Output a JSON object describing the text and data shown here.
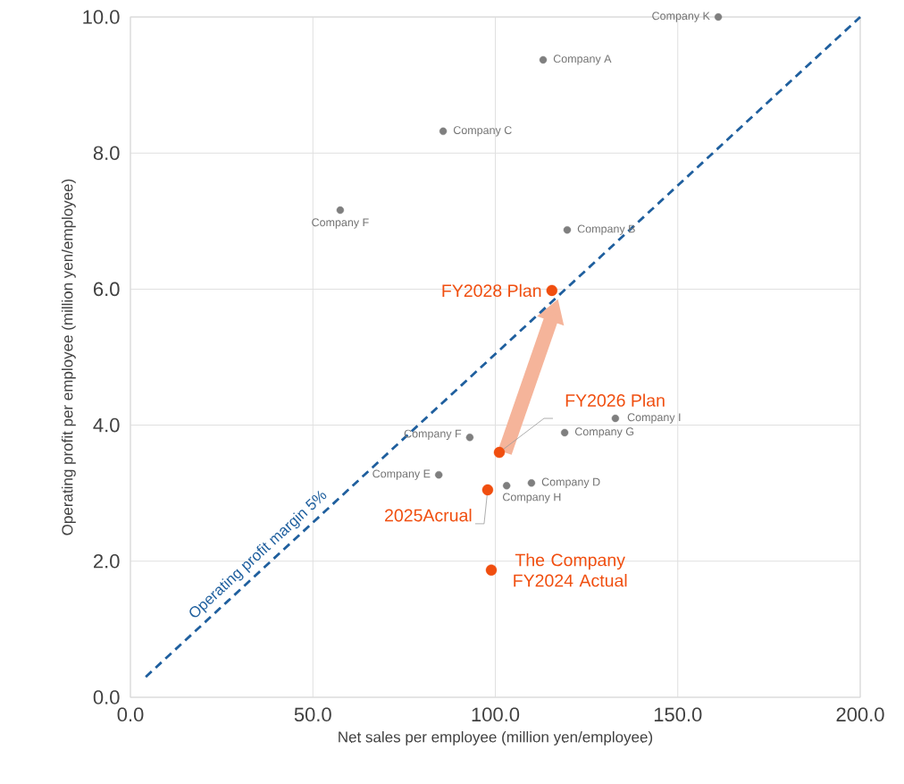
{
  "chart_data": {
    "type": "scatter",
    "xlabel": "Net sales per employee (million yen/employee)",
    "ylabel": "Operating profit per employee (million yen/employee)",
    "xlim": [
      0,
      200
    ],
    "ylim": [
      0,
      10
    ],
    "xticks": [
      {
        "value": 0,
        "label": "0.0"
      },
      {
        "value": 50,
        "label": "50.0"
      },
      {
        "value": 100,
        "label": "100.0"
      },
      {
        "value": 150,
        "label": "150.0"
      },
      {
        "value": 200,
        "label": "200.0"
      }
    ],
    "yticks": [
      {
        "value": 0,
        "label": "0.0"
      },
      {
        "value": 2,
        "label": "2.0"
      },
      {
        "value": 4,
        "label": "4.0"
      },
      {
        "value": 6,
        "label": "6.0"
      },
      {
        "value": 8,
        "label": "8.0"
      },
      {
        "value": 10,
        "label": "10.0"
      }
    ],
    "grid": true,
    "series": [
      {
        "color": "#7f7f7f",
        "marker": "circle",
        "x": [
          161.1,
          113.1,
          85.7,
          57.5,
          119.7,
          132.9,
          119.0,
          93.0,
          84.5,
          109.9,
          103.1
        ],
        "values": [
          10.0,
          9.37,
          8.32,
          7.16,
          6.87,
          4.1,
          3.89,
          3.82,
          3.27,
          3.15,
          3.11
        ]
      },
      {
        "color": "#f04e0f",
        "marker": "circle",
        "x": [
          115.5,
          101.1,
          97.9,
          98.9
        ],
        "values": [
          5.98,
          3.6,
          3.05,
          1.87
        ]
      },
      {
        "type": "line",
        "name": "Operating profit margin 5%",
        "color": "#1f5f9e",
        "line_style": "dashed",
        "marker": "none",
        "x": [
          4.2,
          200
        ],
        "values": [
          0.3,
          10
        ]
      }
    ],
    "annotations": [
      {
        "text": "Company K",
        "x": 161.1,
        "y": 10.0
      },
      {
        "text": "Company A",
        "x": 113.1,
        "y": 9.37
      },
      {
        "text": "Company C",
        "x": 85.7,
        "y": 8.32
      },
      {
        "text": "Company F",
        "x": 57.5,
        "y": 7.16
      },
      {
        "text": "Company B",
        "x": 119.7,
        "y": 6.87
      },
      {
        "text": "Company I",
        "x": 132.9,
        "y": 4.1
      },
      {
        "text": "Company G",
        "x": 119.0,
        "y": 3.89
      },
      {
        "text": "Company F",
        "x": 93.0,
        "y": 3.82
      },
      {
        "text": "Company E",
        "x": 84.5,
        "y": 3.27
      },
      {
        "text": "Company D",
        "x": 109.9,
        "y": 3.15
      },
      {
        "text": "Company H",
        "x": 103.1,
        "y": 3.11
      },
      {
        "text": "FY2028 Plan",
        "x": 115.5,
        "y": 5.98
      },
      {
        "text": "FY2026 Plan",
        "x": 101.1,
        "y": 3.6
      },
      {
        "text": "2025Acrual",
        "x": 97.9,
        "y": 3.05
      },
      {
        "text": "The Company FY2024 Actual",
        "x": 98.9,
        "y": 1.87
      }
    ]
  }
}
